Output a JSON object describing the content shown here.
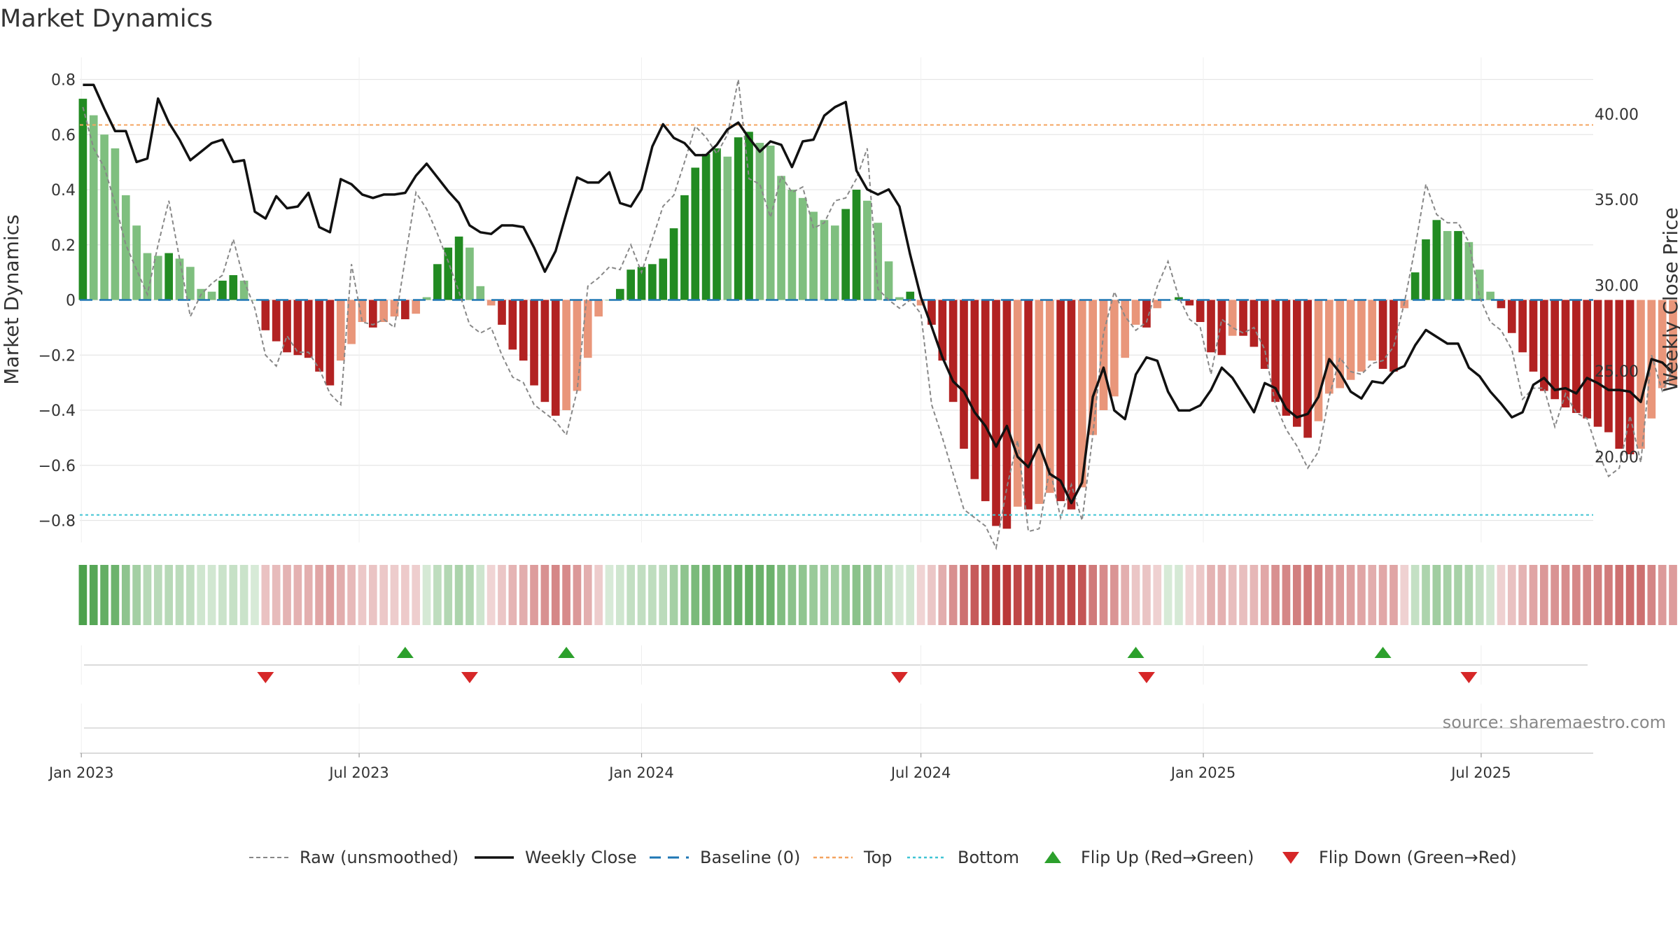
{
  "title": "Market Dynamics",
  "source": "source: sharemaestro.com",
  "chart_data": {
    "type": "bar",
    "title": "Market Dynamics",
    "ylabel": "Market Dynamics",
    "y2label": "Weekly Close Price",
    "ylim": [
      -0.88,
      0.88
    ],
    "y2lim": [
      15.0,
      43.3
    ],
    "yticks": [
      0.8,
      0.6,
      0.4,
      0.2,
      0,
      -0.2,
      -0.4,
      -0.6,
      -0.8
    ],
    "ytick_labels": [
      "0.8",
      "0.6",
      "0.4",
      "0.2",
      "0",
      "−0.2",
      "−0.4",
      "−0.6",
      "−0.8"
    ],
    "y2ticks": [
      40.0,
      35.0,
      30.0,
      25.0,
      20.0
    ],
    "y2tick_labels": [
      "40.00",
      "35.00",
      "30.00",
      "25.00",
      "20.00"
    ],
    "xlim": [
      "2022-12-31",
      "2025-09-12"
    ],
    "xticks": [
      "2023-01-01",
      "2023-07-01",
      "2024-01-01",
      "2024-07-01",
      "2025-01-01",
      "2025-07-01"
    ],
    "xtick_labels": [
      "Jan 2023",
      "Jul 2023",
      "Jan 2024",
      "Jul 2024",
      "Jan 2025",
      "Jul 2025"
    ],
    "top_level": 0.635,
    "bottom_level": -0.78,
    "baseline": 0,
    "start_week": "2023-01-02",
    "week_days": 7,
    "bars": [
      0.73,
      0.67,
      0.6,
      0.55,
      0.38,
      0.27,
      0.17,
      0.16,
      0.17,
      0.15,
      0.12,
      0.04,
      0.03,
      0.07,
      0.09,
      0.07,
      0.0,
      -0.11,
      -0.15,
      -0.19,
      -0.2,
      -0.21,
      -0.26,
      -0.31,
      -0.22,
      -0.16,
      -0.08,
      -0.1,
      -0.08,
      -0.06,
      -0.07,
      -0.05,
      0.01,
      0.13,
      0.19,
      0.23,
      0.19,
      0.05,
      -0.02,
      -0.09,
      -0.18,
      -0.22,
      -0.31,
      -0.37,
      -0.42,
      -0.4,
      -0.33,
      -0.21,
      -0.06,
      0.0,
      0.04,
      0.11,
      0.12,
      0.13,
      0.15,
      0.26,
      0.38,
      0.48,
      0.53,
      0.55,
      0.52,
      0.59,
      0.61,
      0.57,
      0.56,
      0.45,
      0.4,
      0.37,
      0.32,
      0.29,
      0.27,
      0.33,
      0.4,
      0.36,
      0.28,
      0.14,
      0.01,
      0.03,
      -0.02,
      -0.09,
      -0.22,
      -0.37,
      -0.54,
      -0.65,
      -0.73,
      -0.82,
      -0.83,
      -0.75,
      -0.76,
      -0.74,
      -0.7,
      -0.73,
      -0.76,
      -0.68,
      -0.49,
      -0.4,
      -0.35,
      -0.21,
      -0.09,
      -0.1,
      -0.03,
      0.0,
      0.01,
      -0.02,
      -0.08,
      -0.19,
      -0.2,
      -0.13,
      -0.13,
      -0.17,
      -0.25,
      -0.37,
      -0.42,
      -0.46,
      -0.5,
      -0.44,
      -0.34,
      -0.32,
      -0.29,
      -0.26,
      -0.22,
      -0.25,
      -0.26,
      -0.03,
      0.1,
      0.22,
      0.29,
      0.25,
      0.25,
      0.21,
      0.11,
      0.03,
      -0.03,
      -0.12,
      -0.19,
      -0.26,
      -0.33,
      -0.36,
      -0.39,
      -0.41,
      -0.43,
      -0.46,
      -0.48,
      -0.54,
      -0.56,
      -0.54,
      -0.43,
      -0.32,
      -0.31
    ],
    "raw": [
      0.7,
      0.55,
      0.48,
      0.35,
      0.2,
      0.11,
      0.02,
      0.2,
      0.36,
      0.15,
      -0.06,
      0.02,
      0.06,
      0.09,
      0.22,
      0.07,
      -0.03,
      -0.2,
      -0.24,
      -0.13,
      -0.19,
      -0.19,
      -0.25,
      -0.34,
      -0.38,
      0.13,
      -0.08,
      -0.09,
      -0.07,
      -0.1,
      0.15,
      0.39,
      0.33,
      0.24,
      0.14,
      0.03,
      -0.09,
      -0.12,
      -0.1,
      -0.2,
      -0.28,
      -0.3,
      -0.38,
      -0.41,
      -0.44,
      -0.49,
      -0.33,
      0.05,
      0.08,
      0.12,
      0.11,
      0.2,
      0.1,
      0.22,
      0.34,
      0.38,
      0.5,
      0.63,
      0.59,
      0.53,
      0.6,
      0.8,
      0.44,
      0.42,
      0.3,
      0.45,
      0.39,
      0.41,
      0.26,
      0.28,
      0.36,
      0.37,
      0.44,
      0.55,
      0.04,
      0.0,
      -0.03,
      0.0,
      -0.05,
      -0.38,
      -0.5,
      -0.63,
      -0.76,
      -0.79,
      -0.82,
      -0.9,
      -0.68,
      -0.51,
      -0.84,
      -0.83,
      -0.61,
      -0.79,
      -0.67,
      -0.8,
      -0.49,
      -0.12,
      0.03,
      -0.06,
      -0.11,
      -0.08,
      0.05,
      0.14,
      0.01,
      -0.07,
      -0.1,
      -0.27,
      -0.07,
      -0.1,
      -0.12,
      -0.1,
      -0.18,
      -0.38,
      -0.47,
      -0.53,
      -0.61,
      -0.55,
      -0.35,
      -0.21,
      -0.26,
      -0.27,
      -0.23,
      -0.22,
      -0.17,
      -0.01,
      0.19,
      0.42,
      0.31,
      0.28,
      0.28,
      0.21,
      0.01,
      -0.08,
      -0.11,
      -0.18,
      -0.36,
      -0.32,
      -0.32,
      -0.46,
      -0.34,
      -0.41,
      -0.43,
      -0.55,
      -0.64,
      -0.61,
      -0.42,
      -0.59,
      -0.2,
      -0.33,
      -0.25
    ],
    "close": [
      41.7,
      41.7,
      40.3,
      39.0,
      39.0,
      37.2,
      37.4,
      40.9,
      39.5,
      38.5,
      37.3,
      37.8,
      38.3,
      38.5,
      37.2,
      37.3,
      34.3,
      33.9,
      35.2,
      34.5,
      34.6,
      35.4,
      33.4,
      33.1,
      36.2,
      35.9,
      35.3,
      35.1,
      35.3,
      35.3,
      35.4,
      36.4,
      37.1,
      36.3,
      35.5,
      34.8,
      33.5,
      33.1,
      33.0,
      33.5,
      33.5,
      33.4,
      32.2,
      30.8,
      32.0,
      34.2,
      36.3,
      36.0,
      36.0,
      36.6,
      34.8,
      34.6,
      35.6,
      38.1,
      39.4,
      38.6,
      38.3,
      37.6,
      37.6,
      38.2,
      39.1,
      39.5,
      38.6,
      37.8,
      38.4,
      38.2,
      36.9,
      38.4,
      38.5,
      39.9,
      40.4,
      40.7,
      36.7,
      35.6,
      35.3,
      35.6,
      34.6,
      31.8,
      29.3,
      27.6,
      25.8,
      24.4,
      23.8,
      22.6,
      21.8,
      20.6,
      21.8,
      20.0,
      19.4,
      20.7,
      19.0,
      18.6,
      17.3,
      18.5,
      23.5,
      25.2,
      22.7,
      22.2,
      24.8,
      25.8,
      25.6,
      23.8,
      22.7,
      22.7,
      23.0,
      23.9,
      25.2,
      24.6,
      23.6,
      22.6,
      24.3,
      24.0,
      22.8,
      22.3,
      22.5,
      23.5,
      25.7,
      24.9,
      23.8,
      23.4,
      24.4,
      24.3,
      25.0,
      25.3,
      26.5,
      27.4,
      27.0,
      26.6,
      26.6,
      25.2,
      24.7,
      23.8,
      23.1,
      22.3,
      22.6,
      24.2,
      24.6,
      23.9,
      24.0,
      23.7,
      24.6,
      24.3,
      23.9,
      23.9,
      23.8,
      23.2,
      25.7,
      25.5,
      24.9
    ],
    "flips_up": [
      "2023-07-31",
      "2023-11-13",
      "2024-11-18",
      "2025-04-28"
    ],
    "flips_down": [
      "2023-05-01",
      "2023-09-11",
      "2024-06-17",
      "2024-11-25",
      "2025-06-23"
    ],
    "colors": {
      "pos_strong": "#228b22",
      "pos_weak": "#7fbf7f",
      "neg_strong": "#b22222",
      "neg_weak": "#e9967a",
      "raw": "#888888",
      "close": "#111111",
      "baseline": "#1f77b4",
      "top": "#f4a460",
      "bottom": "#40c4d4",
      "flip_up": "#2ca02c",
      "flip_down": "#d62728",
      "grid": "#e6e6e6"
    },
    "legend_position": "bottom-center",
    "legend": [
      "Raw (unsmoothed)",
      "Weekly Close",
      "Baseline (0)",
      "Top",
      "Bottom",
      "Flip Up (Red→Green)",
      "Flip Down (Green→Red)"
    ]
  }
}
